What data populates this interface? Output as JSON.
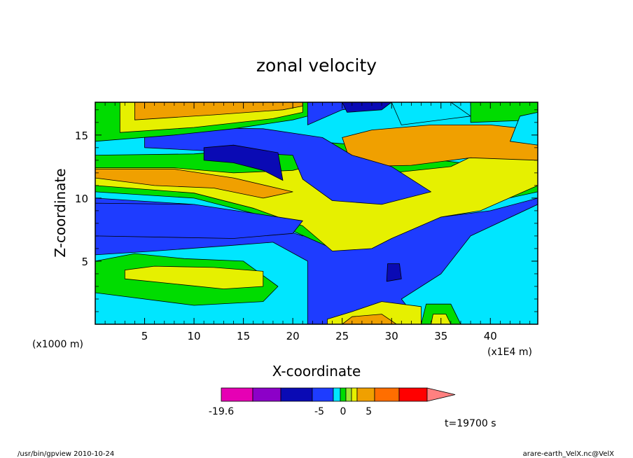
{
  "chart_data": {
    "type": "heatmap",
    "title": "zonal velocity",
    "xlabel": "X-coordinate",
    "ylabel": "Z-coordinate",
    "x_units": "(x1E4 m)",
    "y_units": "(x1000 m)",
    "xlim": [
      0,
      44.8
    ],
    "ylim": [
      0,
      17.6
    ],
    "x_ticks": [
      5,
      10,
      15,
      20,
      25,
      30,
      35,
      40
    ],
    "y_ticks": [
      5,
      10,
      15
    ],
    "time_label": "t=19700 s",
    "colorbar": {
      "tick_labels": [
        {
          "label": "-19.6",
          "value": -19.6
        },
        {
          "label": "-5",
          "value": -5
        },
        {
          "label": "0",
          "value": 0
        },
        {
          "label": "5",
          "value": 5
        }
      ],
      "levels": [
        {
          "color": "#e600b4",
          "range": [
            -19.6,
            -15
          ]
        },
        {
          "color": "#8c00c8",
          "range": [
            -15,
            -10
          ]
        },
        {
          "color": "#0a0ab4",
          "range": [
            -10,
            -6
          ]
        },
        {
          "color": "#1e3cff",
          "range": [
            -6,
            -3
          ]
        },
        {
          "color": "#00e6ff",
          "range": [
            -3,
            -1
          ]
        },
        {
          "color": "#00dc00",
          "range": [
            -1,
            1
          ]
        },
        {
          "color": "#a0e632",
          "range": [
            1,
            2
          ]
        },
        {
          "color": "#e6f000",
          "range": [
            2,
            3
          ]
        },
        {
          "color": "#f0a000",
          "range": [
            3,
            6
          ]
        },
        {
          "color": "#ff6e00",
          "range": [
            6,
            9
          ]
        },
        {
          "color": "#ff0000",
          "range": [
            9,
            14
          ]
        },
        {
          "color": "#ff8080",
          "range": [
            14,
            20
          ]
        }
      ]
    },
    "field_regions": [
      {
        "level": "blue",
        "xz": [
          [
            0,
            0
          ],
          [
            44.8,
            0
          ],
          [
            44.8,
            17.6
          ],
          [
            0,
            17.6
          ]
        ]
      },
      {
        "level": "cyan",
        "xz": [
          [
            0,
            0
          ],
          [
            21.5,
            0
          ],
          [
            21.5,
            5
          ],
          [
            18,
            6.5
          ],
          [
            13,
            6.2
          ],
          [
            6,
            5.8
          ],
          [
            0,
            5.5
          ]
        ]
      },
      {
        "level": "cyan",
        "xz": [
          [
            33,
            0
          ],
          [
            44.8,
            0
          ],
          [
            44.8,
            9.5
          ],
          [
            38,
            7
          ],
          [
            35,
            4
          ],
          [
            31,
            2
          ]
        ]
      },
      {
        "level": "green",
        "xz": [
          [
            0,
            2.5
          ],
          [
            10,
            1.5
          ],
          [
            17,
            1.8
          ],
          [
            18.5,
            3
          ],
          [
            15,
            5
          ],
          [
            9,
            5.2
          ],
          [
            4,
            5.6
          ],
          [
            0,
            5
          ]
        ]
      },
      {
        "level": "yellow",
        "xz": [
          [
            3,
            3.6
          ],
          [
            8,
            3.2
          ],
          [
            13,
            2.8
          ],
          [
            17,
            3
          ],
          [
            17,
            4.2
          ],
          [
            12,
            4.5
          ],
          [
            6,
            4.6
          ],
          [
            3,
            4.3
          ]
        ]
      },
      {
        "level": "cyan",
        "xz": [
          [
            0,
            10
          ],
          [
            10,
            9.5
          ],
          [
            17,
            8
          ],
          [
            21,
            7
          ],
          [
            30,
            8
          ],
          [
            40,
            9
          ],
          [
            44.8,
            10
          ],
          [
            44.8,
            17.6
          ],
          [
            0,
            17.6
          ]
        ]
      },
      {
        "level": "green",
        "xz": [
          [
            0,
            10.5
          ],
          [
            10,
            10
          ],
          [
            16,
            8.8
          ],
          [
            20,
            7.4
          ],
          [
            24,
            6
          ],
          [
            30,
            7
          ],
          [
            36,
            9
          ],
          [
            44.8,
            10.5
          ],
          [
            44.8,
            12
          ],
          [
            35,
            13
          ],
          [
            30,
            14
          ],
          [
            22,
            14.5
          ],
          [
            18,
            14
          ],
          [
            10,
            13.5
          ],
          [
            0,
            13.4
          ]
        ]
      },
      {
        "level": "yellow",
        "xz": [
          [
            0,
            11
          ],
          [
            10,
            10.4
          ],
          [
            16,
            9.2
          ],
          [
            21,
            7.8
          ],
          [
            24,
            5.8
          ],
          [
            28,
            6
          ],
          [
            30,
            6.8
          ],
          [
            35,
            8.5
          ],
          [
            39,
            9
          ],
          [
            44.8,
            11
          ],
          [
            44.8,
            13.5
          ],
          [
            40,
            14
          ],
          [
            36,
            12.5
          ],
          [
            30,
            12
          ],
          [
            24,
            13
          ],
          [
            20,
            12.2
          ],
          [
            14,
            12
          ],
          [
            8,
            12.4
          ],
          [
            0,
            12.4
          ]
        ]
      },
      {
        "level": "orange",
        "xz": [
          [
            0,
            11.6
          ],
          [
            6,
            11
          ],
          [
            12,
            10.8
          ],
          [
            17,
            10
          ],
          [
            20,
            10.5
          ],
          [
            14,
            11.6
          ],
          [
            8,
            12.3
          ],
          [
            0,
            12.3
          ]
        ]
      },
      {
        "level": "orange",
        "xz": [
          [
            26,
            12.5
          ],
          [
            32,
            12.6
          ],
          [
            38,
            13.2
          ],
          [
            44.8,
            13
          ],
          [
            44.8,
            15.4
          ],
          [
            40,
            15.8
          ],
          [
            34,
            15.8
          ],
          [
            28,
            15.4
          ],
          [
            25,
            14.8
          ]
        ]
      },
      {
        "level": "blue",
        "xz": [
          [
            0,
            7
          ],
          [
            14,
            6.8
          ],
          [
            20,
            7.2
          ],
          [
            21,
            8.2
          ],
          [
            16,
            8.8
          ],
          [
            10,
            9.5
          ],
          [
            0,
            9.6
          ]
        ]
      },
      {
        "level": "blue",
        "xz": [
          [
            5,
            14
          ],
          [
            20,
            13.4
          ],
          [
            21,
            11.5
          ],
          [
            24,
            9.8
          ],
          [
            29,
            9.5
          ],
          [
            34,
            10.5
          ],
          [
            30,
            12.5
          ],
          [
            26,
            13.4
          ],
          [
            23,
            14.8
          ],
          [
            17,
            15.5
          ],
          [
            8,
            15.6
          ],
          [
            5,
            15.2
          ]
        ]
      },
      {
        "level": "darkblue",
        "xz": [
          [
            11,
            13
          ],
          [
            14,
            12.8
          ],
          [
            17,
            12.2
          ],
          [
            19,
            11.4
          ],
          [
            18.5,
            13.6
          ],
          [
            14,
            14.2
          ],
          [
            11,
            14
          ]
        ]
      },
      {
        "level": "darkblue",
        "xz": [
          [
            29.5,
            3.4
          ],
          [
            31,
            3.6
          ],
          [
            30.8,
            4.8
          ],
          [
            29.6,
            4.8
          ]
        ]
      },
      {
        "level": "green",
        "xz": [
          [
            0,
            14.5
          ],
          [
            8,
            15
          ],
          [
            14,
            15.5
          ],
          [
            20,
            16.2
          ],
          [
            22,
            16.6
          ],
          [
            21.5,
            17.6
          ],
          [
            0,
            17.6
          ]
        ]
      },
      {
        "level": "yellow",
        "xz": [
          [
            2.5,
            15.2
          ],
          [
            10,
            15.6
          ],
          [
            18,
            16.3
          ],
          [
            21,
            16.8
          ],
          [
            21,
            17.6
          ],
          [
            2.5,
            17.6
          ]
        ]
      },
      {
        "level": "orange",
        "xz": [
          [
            4,
            16.2
          ],
          [
            12,
            16.6
          ],
          [
            19,
            17
          ],
          [
            21,
            17.3
          ],
          [
            21,
            17.6
          ],
          [
            4,
            17.6
          ]
        ]
      },
      {
        "level": "blue",
        "xz": [
          [
            21.5,
            15.8
          ],
          [
            25,
            17
          ],
          [
            30,
            17.6
          ],
          [
            21.5,
            17.6
          ]
        ]
      },
      {
        "level": "darkblue",
        "xz": [
          [
            25.5,
            16.8
          ],
          [
            29,
            17
          ],
          [
            30,
            17.6
          ],
          [
            25,
            17.6
          ]
        ]
      },
      {
        "level": "green",
        "xz": [
          [
            38,
            16
          ],
          [
            44.8,
            16.2
          ],
          [
            44.8,
            17.6
          ],
          [
            38,
            17.6
          ]
        ]
      },
      {
        "level": "cyan",
        "xz": [
          [
            31,
            15.8
          ],
          [
            38,
            16.5
          ],
          [
            36,
            17.6
          ],
          [
            30,
            17.6
          ]
        ]
      },
      {
        "level": "yellow",
        "xz": [
          [
            23.5,
            0
          ],
          [
            33,
            0
          ],
          [
            33,
            1.4
          ],
          [
            29,
            1.8
          ],
          [
            26,
            1
          ],
          [
            23.5,
            0.4
          ]
        ]
      },
      {
        "level": "orange",
        "xz": [
          [
            25,
            0
          ],
          [
            30.5,
            0
          ],
          [
            29,
            0.8
          ],
          [
            26,
            0.6
          ]
        ]
      },
      {
        "level": "green",
        "xz": [
          [
            33,
            0
          ],
          [
            37,
            0
          ],
          [
            36,
            1.6
          ],
          [
            33.5,
            1.6
          ]
        ]
      },
      {
        "level": "yellow",
        "xz": [
          [
            34,
            0
          ],
          [
            36,
            0
          ],
          [
            35.5,
            0.8
          ],
          [
            34.2,
            0.8
          ]
        ]
      },
      {
        "level": "cyan",
        "xz": [
          [
            42,
            14.5
          ],
          [
            44.8,
            14.2
          ],
          [
            44.8,
            16.8
          ],
          [
            43,
            16.5
          ]
        ]
      }
    ]
  },
  "footer": {
    "left": "/usr/bin/gpview   2010-10-24",
    "right": "arare-earth_VelX.nc@VelX"
  }
}
